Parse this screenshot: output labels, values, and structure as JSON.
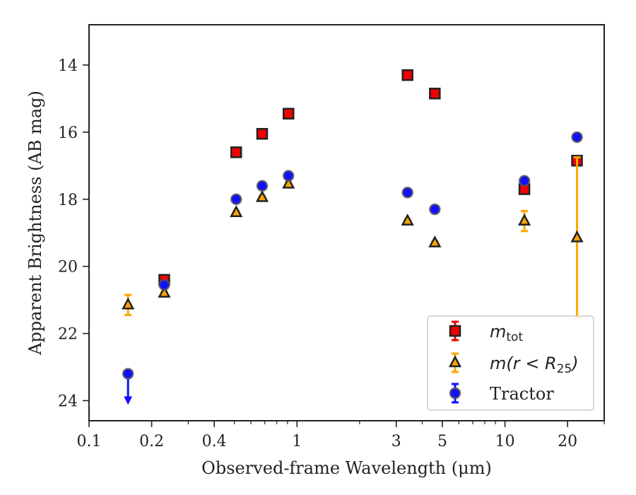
{
  "chart_data": {
    "type": "scatter",
    "xlabel": "Observed-frame Wavelength (μm)",
    "ylabel": "Apparent Brightness (AB mag)",
    "xscale": "log",
    "xlim": [
      0.1,
      30
    ],
    "ylim": [
      24.6,
      12.8
    ],
    "y_inverted": true,
    "x_ticks": [
      0.1,
      0.2,
      0.4,
      1,
      3,
      5,
      10,
      20
    ],
    "x_tick_labels": [
      "0.1",
      "0.2",
      "0.4",
      "1",
      "3",
      "5",
      "10",
      "20"
    ],
    "y_ticks": [
      14,
      16,
      18,
      20,
      22,
      24
    ],
    "y_tick_labels": [
      "14",
      "16",
      "18",
      "20",
      "22",
      "24"
    ],
    "legend_position": "lower-right",
    "series": [
      {
        "key": "mtot",
        "legend": {
          "base": "m",
          "sub": "tot"
        },
        "marker": "square",
        "color": "#ee0000",
        "edge": "#222222",
        "points": [
          {
            "x": 0.23,
            "y": 20.4,
            "err": 0.05
          },
          {
            "x": 0.51,
            "y": 16.6,
            "err": 0.05
          },
          {
            "x": 0.68,
            "y": 16.05,
            "err": 0.05
          },
          {
            "x": 0.91,
            "y": 15.45,
            "err": 0.05
          },
          {
            "x": 3.4,
            "y": 14.3,
            "err": 0.05
          },
          {
            "x": 4.6,
            "y": 14.85,
            "err": 0.05
          },
          {
            "x": 12.4,
            "y": 17.7,
            "err": 0.05
          },
          {
            "x": 22.2,
            "y": 16.85,
            "err": 0.05
          }
        ]
      },
      {
        "key": "mr25",
        "legend": {
          "prefix": "m(r < R",
          "sub": "25",
          "suffix": ")"
        },
        "marker": "triangle",
        "color": "#ffa500",
        "edge": "#222222",
        "points": [
          {
            "x": 0.154,
            "y": 21.15,
            "err": 0.3
          },
          {
            "x": 0.23,
            "y": 20.8,
            "err": 0.05
          },
          {
            "x": 0.51,
            "y": 18.4,
            "err": 0.05
          },
          {
            "x": 0.68,
            "y": 17.95,
            "err": 0.05
          },
          {
            "x": 0.91,
            "y": 17.55,
            "err": 0.05
          },
          {
            "x": 3.4,
            "y": 18.65,
            "err": 0.05
          },
          {
            "x": 4.6,
            "y": 19.3,
            "err": 0.05
          },
          {
            "x": 12.4,
            "y": 18.65,
            "err": 0.3
          },
          {
            "x": 22.2,
            "y": 19.15,
            "err": 2.4
          }
        ]
      },
      {
        "key": "tractor",
        "legend_label": "Tractor",
        "marker": "circle",
        "color": "#1010ff",
        "edge": "#555555",
        "points": [
          {
            "x": 0.154,
            "y": 23.2,
            "upper_limit": true
          },
          {
            "x": 0.23,
            "y": 20.55,
            "err": 0.05
          },
          {
            "x": 0.51,
            "y": 18.0,
            "err": 0.05
          },
          {
            "x": 0.68,
            "y": 17.6,
            "err": 0.05
          },
          {
            "x": 0.91,
            "y": 17.3,
            "err": 0.05
          },
          {
            "x": 3.4,
            "y": 17.8,
            "err": 0.05
          },
          {
            "x": 4.6,
            "y": 18.3,
            "err": 0.05
          },
          {
            "x": 12.4,
            "y": 17.45,
            "err": 0.05
          },
          {
            "x": 22.2,
            "y": 16.15,
            "err": 0.05
          }
        ]
      }
    ]
  }
}
